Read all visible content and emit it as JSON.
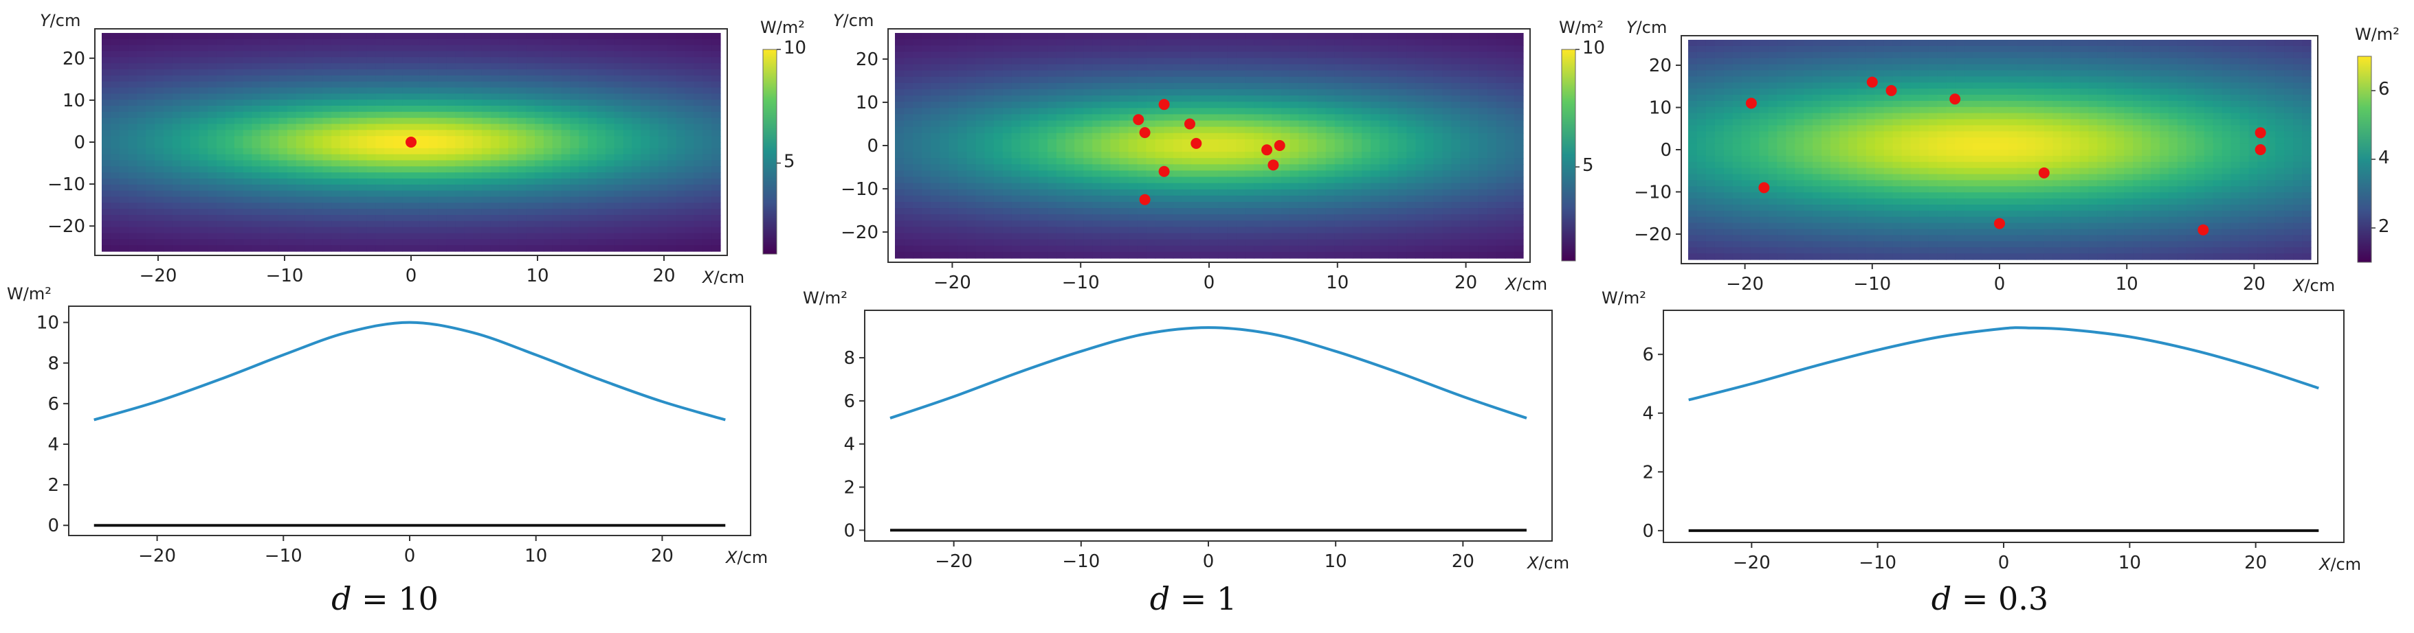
{
  "chart_data": [
    {
      "type": "heatmap",
      "caption": "d = 10",
      "caption_var": "d",
      "caption_val": "10",
      "x_unit": "X/cm",
      "y_unit": "Y/cm",
      "colorbar_unit": "W/m²",
      "xticks": [
        -20,
        -10,
        0,
        10,
        20
      ],
      "yticks": [
        -20,
        -10,
        0,
        10,
        20
      ],
      "xlim": [
        -25,
        25
      ],
      "ylim": [
        -27,
        27
      ],
      "colorbar_ticks": [
        5,
        10
      ],
      "colorbar_range": [
        1,
        10
      ],
      "field": {
        "peak": 10,
        "cx": 0,
        "cy": 0,
        "sx": 22,
        "sy": 12
      },
      "points": [
        [
          0,
          0
        ]
      ],
      "point_color": "#ee1111"
    },
    {
      "type": "line",
      "x_unit": "X/cm",
      "y_unit": "W/m²",
      "xticks": [
        -20,
        -10,
        0,
        10,
        20
      ],
      "yticks": [
        0,
        2,
        4,
        6,
        8,
        10
      ],
      "xlim": [
        -27,
        27
      ],
      "ylim": [
        -0.5,
        10.8
      ],
      "series": [
        {
          "x": [
            -25,
            -20,
            -15,
            -10,
            -5,
            0,
            5,
            10,
            15,
            20,
            25
          ],
          "values": [
            5.2,
            6.1,
            7.2,
            8.4,
            9.5,
            10.0,
            9.5,
            8.4,
            7.2,
            6.1,
            5.2
          ],
          "color": "#2a8fc7"
        },
        {
          "x": [
            -25,
            25
          ],
          "values": [
            0,
            0
          ],
          "color": "#111111"
        }
      ]
    },
    {
      "type": "heatmap",
      "caption": "d = 1",
      "caption_var": "d",
      "caption_val": "1",
      "x_unit": "X/cm",
      "y_unit": "Y/cm",
      "colorbar_unit": "W/m²",
      "xticks": [
        -20,
        -10,
        0,
        10,
        20
      ],
      "yticks": [
        -20,
        -10,
        0,
        10,
        20
      ],
      "xlim": [
        -25,
        25
      ],
      "ylim": [
        -27,
        27
      ],
      "colorbar_ticks": [
        5,
        10
      ],
      "colorbar_range": [
        1,
        10
      ],
      "field": {
        "peak": 9.5,
        "cx": 0,
        "cy": 0,
        "sx": 22,
        "sy": 13
      },
      "points": [
        [
          -5.5,
          6
        ],
        [
          -5,
          3
        ],
        [
          -3.5,
          9.5
        ],
        [
          -1.5,
          5
        ],
        [
          -1,
          0.5
        ],
        [
          4.5,
          -1
        ],
        [
          5.5,
          0
        ],
        [
          5,
          -4.5
        ],
        [
          -3.5,
          -6
        ],
        [
          -5,
          -12.5
        ]
      ],
      "point_color": "#ee1111"
    },
    {
      "type": "line",
      "x_unit": "X/cm",
      "y_unit": "W/m²",
      "xticks": [
        -20,
        -10,
        0,
        10,
        20
      ],
      "yticks": [
        0,
        2,
        4,
        6,
        8
      ],
      "xlim": [
        -27,
        27
      ],
      "ylim": [
        -0.5,
        10.2
      ],
      "series": [
        {
          "x": [
            -25,
            -20,
            -15,
            -10,
            -5,
            0,
            5,
            10,
            15,
            20,
            25
          ],
          "values": [
            5.2,
            6.2,
            7.3,
            8.3,
            9.1,
            9.4,
            9.1,
            8.3,
            7.3,
            6.2,
            5.2
          ],
          "color": "#2a8fc7"
        },
        {
          "x": [
            -25,
            25
          ],
          "values": [
            0,
            0
          ],
          "color": "#111111"
        }
      ]
    },
    {
      "type": "heatmap",
      "caption": "d = 0.3",
      "caption_var": "d",
      "caption_val": "0.3",
      "x_unit": "X/cm",
      "y_unit": "Y/cm",
      "colorbar_unit": "W/m²",
      "xticks": [
        -20,
        -10,
        0,
        10,
        20
      ],
      "yticks": [
        -20,
        -10,
        0,
        10,
        20
      ],
      "xlim": [
        -25,
        25
      ],
      "ylim": [
        -27,
        27
      ],
      "colorbar_ticks": [
        2,
        4,
        6
      ],
      "colorbar_range": [
        1,
        7
      ],
      "field": {
        "peak": 6.9,
        "cx": -1,
        "cy": 1,
        "sx": 30,
        "sy": 19
      },
      "points": [
        [
          -19.5,
          11
        ],
        [
          -10,
          16
        ],
        [
          -8.5,
          14
        ],
        [
          -3.5,
          12
        ],
        [
          -18.5,
          -9
        ],
        [
          3.5,
          -5.5
        ],
        [
          0,
          -17.5
        ],
        [
          16,
          -19
        ],
        [
          20.5,
          4
        ],
        [
          20.5,
          0
        ]
      ],
      "point_color": "#ee1111"
    },
    {
      "type": "line",
      "x_unit": "X/cm",
      "y_unit": "W/m²",
      "xticks": [
        -20,
        -10,
        0,
        10,
        20
      ],
      "yticks": [
        0,
        2,
        4,
        6
      ],
      "xlim": [
        -27,
        27
      ],
      "ylim": [
        -0.4,
        7.5
      ],
      "series": [
        {
          "x": [
            -25,
            -20,
            -15,
            -10,
            -5,
            0,
            2,
            5,
            10,
            15,
            20,
            25
          ],
          "values": [
            4.45,
            5.0,
            5.6,
            6.15,
            6.6,
            6.88,
            6.9,
            6.85,
            6.6,
            6.15,
            5.55,
            4.85
          ],
          "color": "#2a8fc7"
        },
        {
          "x": [
            -25,
            25
          ],
          "values": [
            0,
            0
          ],
          "color": "#111111"
        }
      ]
    }
  ]
}
